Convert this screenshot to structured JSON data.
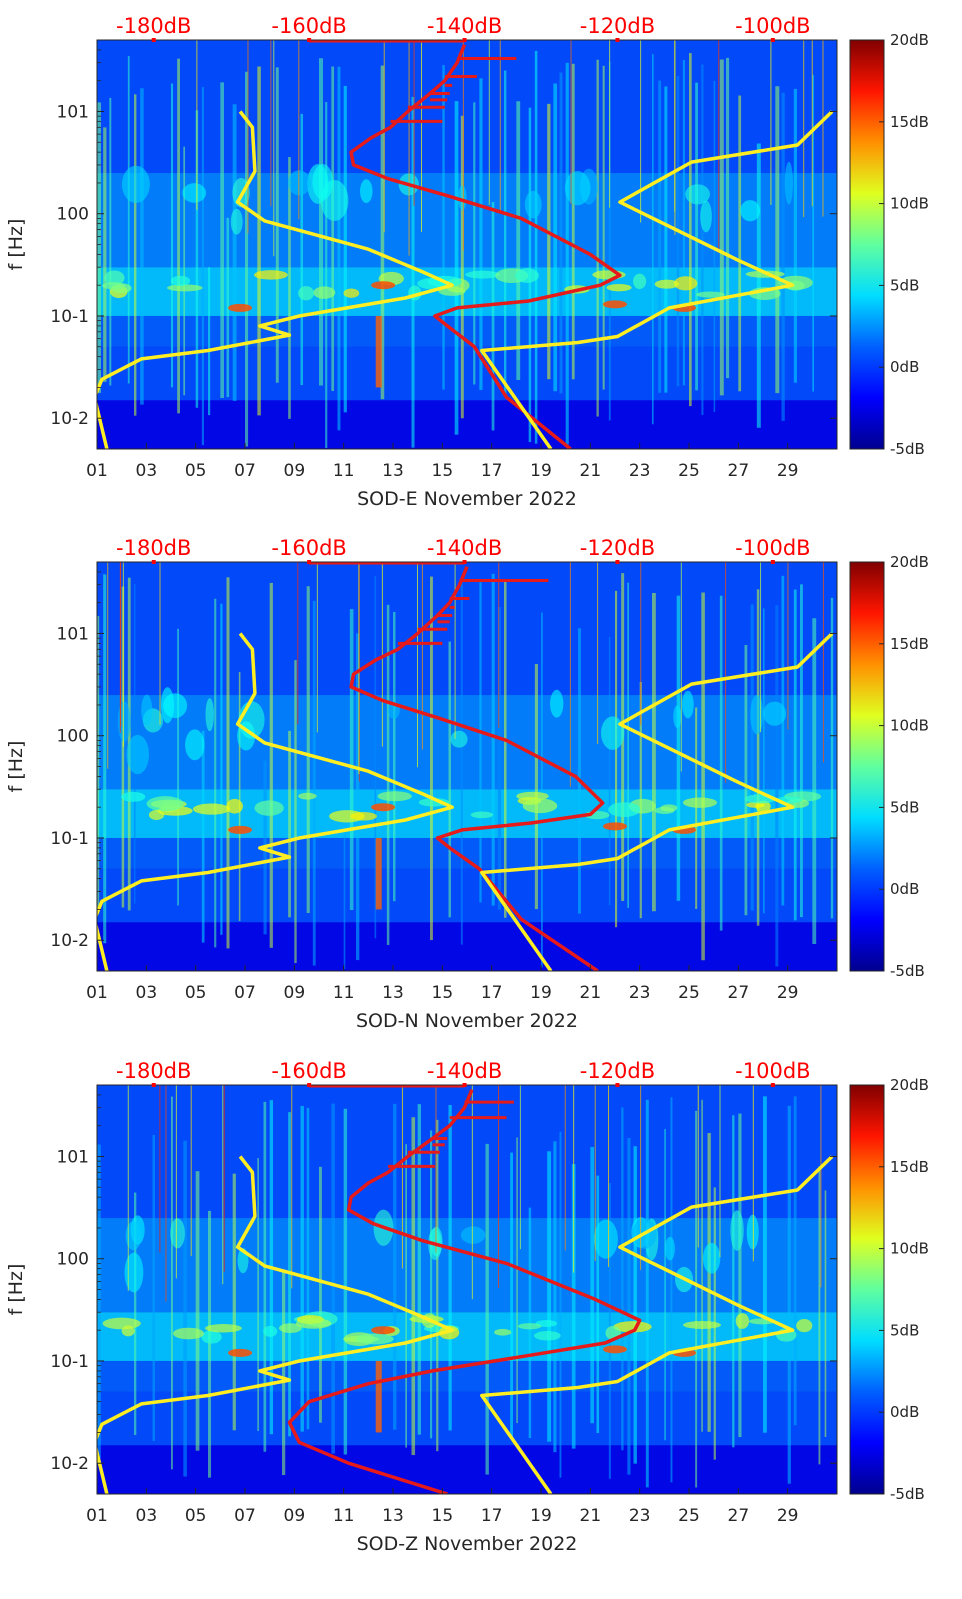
{
  "colors": {
    "background": "#ffffff",
    "text": "#262626",
    "axis": "#262626",
    "red_curve": "#e61a1a",
    "red_top_labels": "#ff0000",
    "yellow_curve": "#ffee22",
    "colormap": [
      "#00008f",
      "#0000ff",
      "#0080ff",
      "#00ffff",
      "#80ff80",
      "#ffff00",
      "#ff8000",
      "#ff0000",
      "#800000"
    ]
  },
  "chart_data": [
    {
      "type": "heatmap",
      "panel": "east",
      "xlabel": "SOD-E November 2022",
      "ylabel": "f [Hz]",
      "x_ticks": [
        "01",
        "03",
        "05",
        "07",
        "09",
        "11",
        "13",
        "15",
        "17",
        "19",
        "21",
        "23",
        "25",
        "27",
        "29"
      ],
      "xlim": [
        1,
        31
      ],
      "y_ticks": [
        "10-2",
        "10-1",
        "100",
        "101"
      ],
      "y_tick_values": [
        0.01,
        0.1,
        1,
        10
      ],
      "ylim": [
        0.005,
        50
      ],
      "yscale": "log",
      "top_ticks": [
        "-180dB",
        "-160dB",
        "-140dB",
        "-120dB",
        "-100dB"
      ],
      "top_tick_days": [
        3.3,
        9.6,
        15.9,
        22.1,
        28.4
      ],
      "colorbar": {
        "ticks": [
          "-5dB",
          "0dB",
          "5dB",
          "10dB",
          "15dB",
          "20dB"
        ],
        "range": [
          -5,
          20
        ]
      },
      "series": [
        {
          "name": "noise reference (red)",
          "color": "red",
          "points": [
            [
              20.2,
              0.005
            ],
            [
              17.6,
              0.016
            ],
            [
              16.3,
              0.05
            ],
            [
              15.2,
              0.08
            ],
            [
              14.7,
              0.1
            ],
            [
              15.6,
              0.12
            ],
            [
              18.5,
              0.14
            ],
            [
              21.4,
              0.2
            ],
            [
              22.2,
              0.25
            ],
            [
              21.0,
              0.4
            ],
            [
              18.2,
              0.9
            ],
            [
              15.2,
              1.5
            ],
            [
              12.8,
              2.2
            ],
            [
              11.4,
              3.0
            ],
            [
              11.3,
              4.0
            ],
            [
              12.1,
              5.5
            ],
            [
              12.9,
              7.0
            ],
            [
              13.6,
              10.0
            ],
            [
              14.5,
              15.0
            ],
            [
              15.1,
              20.0
            ],
            [
              15.6,
              30.0
            ],
            [
              15.9,
              45.0
            ]
          ],
          "spurs": [
            [
              15.0,
              8.0
            ],
            [
              15.1,
              11.0
            ],
            [
              15.2,
              13.0
            ],
            [
              15.3,
              15.0
            ],
            [
              15.4,
              18.0
            ],
            [
              16.4,
              22.0
            ],
            [
              18.0,
              33.0
            ]
          ]
        },
        {
          "name": "seismic noise model (yellow)",
          "color": "yellow",
          "segments": [
            [
              [
                1.4,
                0.005
              ],
              [
                0.9,
                0.016
              ],
              [
                1.2,
                0.024
              ],
              [
                2.8,
                0.038
              ],
              [
                5.5,
                0.046
              ],
              [
                8.8,
                0.065
              ],
              [
                7.6,
                0.08
              ],
              [
                9.2,
                0.1
              ],
              [
                13.5,
                0.15
              ],
              [
                15.4,
                0.2
              ],
              [
                14.2,
                0.27
              ],
              [
                12.0,
                0.45
              ],
              [
                7.8,
                0.85
              ],
              [
                6.7,
                1.3
              ],
              [
                7.4,
                2.6
              ],
              [
                7.3,
                7.0
              ],
              [
                6.8,
                10.0
              ]
            ],
            [
              [
                19.4,
                0.005
              ],
              [
                16.6,
                0.046
              ],
              [
                20.5,
                0.055
              ],
              [
                22.1,
                0.063
              ],
              [
                24.2,
                0.12
              ],
              [
                29.2,
                0.2
              ],
              [
                27.0,
                0.35
              ],
              [
                22.2,
                1.3
              ],
              [
                25.1,
                3.2
              ],
              [
                29.4,
                4.7
              ],
              [
                30.8,
                10.0
              ]
            ]
          ]
        }
      ]
    },
    {
      "type": "heatmap",
      "panel": "north",
      "xlabel": "SOD-N November 2022",
      "ylabel": "f [Hz]",
      "x_ticks": [
        "01",
        "03",
        "05",
        "07",
        "09",
        "11",
        "13",
        "15",
        "17",
        "19",
        "21",
        "23",
        "25",
        "27",
        "29"
      ],
      "xlim": [
        1,
        31
      ],
      "y_ticks": [
        "10-2",
        "10-1",
        "100",
        "101"
      ],
      "y_tick_values": [
        0.01,
        0.1,
        1,
        10
      ],
      "ylim": [
        0.005,
        50
      ],
      "yscale": "log",
      "top_ticks": [
        "-180dB",
        "-160dB",
        "-140dB",
        "-120dB",
        "-100dB"
      ],
      "top_tick_days": [
        3.3,
        9.6,
        15.9,
        22.1,
        28.4
      ],
      "colorbar": {
        "ticks": [
          "-5dB",
          "0dB",
          "5dB",
          "10dB",
          "15dB",
          "20dB"
        ],
        "range": [
          -5,
          20
        ]
      },
      "series": [
        {
          "name": "noise reference (red)",
          "color": "red",
          "points": [
            [
              21.3,
              0.005
            ],
            [
              18.2,
              0.016
            ],
            [
              16.5,
              0.05
            ],
            [
              15.3,
              0.08
            ],
            [
              14.8,
              0.1
            ],
            [
              15.8,
              0.12
            ],
            [
              18.6,
              0.14
            ],
            [
              21.0,
              0.17
            ],
            [
              21.5,
              0.22
            ],
            [
              20.4,
              0.4
            ],
            [
              17.6,
              0.9
            ],
            [
              14.8,
              1.5
            ],
            [
              12.6,
              2.2
            ],
            [
              11.3,
              3.0
            ],
            [
              11.4,
              4.0
            ],
            [
              12.3,
              5.5
            ],
            [
              13.2,
              7.0
            ],
            [
              14.0,
              10.0
            ],
            [
              14.8,
              15.0
            ],
            [
              15.3,
              20.0
            ],
            [
              15.7,
              30.0
            ],
            [
              16.0,
              45.0
            ]
          ],
          "spurs": [
            [
              15.0,
              8.0
            ],
            [
              15.2,
              11.0
            ],
            [
              15.3,
              13.0
            ],
            [
              15.4,
              15.0
            ],
            [
              15.5,
              18.0
            ],
            [
              16.1,
              22.0
            ],
            [
              19.3,
              33.0
            ]
          ]
        },
        {
          "name": "seismic noise model (yellow)",
          "color": "yellow",
          "segments": [
            [
              [
                1.4,
                0.005
              ],
              [
                0.9,
                0.016
              ],
              [
                1.2,
                0.024
              ],
              [
                2.8,
                0.038
              ],
              [
                5.5,
                0.046
              ],
              [
                8.8,
                0.065
              ],
              [
                7.6,
                0.08
              ],
              [
                9.2,
                0.1
              ],
              [
                13.5,
                0.15
              ],
              [
                15.4,
                0.2
              ],
              [
                14.2,
                0.27
              ],
              [
                12.0,
                0.45
              ],
              [
                7.8,
                0.85
              ],
              [
                6.7,
                1.3
              ],
              [
                7.4,
                2.6
              ],
              [
                7.3,
                7.0
              ],
              [
                6.8,
                10.0
              ]
            ],
            [
              [
                19.4,
                0.005
              ],
              [
                16.6,
                0.046
              ],
              [
                20.5,
                0.055
              ],
              [
                22.1,
                0.063
              ],
              [
                24.2,
                0.12
              ],
              [
                29.2,
                0.2
              ],
              [
                27.0,
                0.35
              ],
              [
                22.2,
                1.3
              ],
              [
                25.1,
                3.2
              ],
              [
                29.4,
                4.7
              ],
              [
                30.8,
                10.0
              ]
            ]
          ]
        }
      ]
    },
    {
      "type": "heatmap",
      "panel": "vertical",
      "xlabel": "SOD-Z November 2022",
      "ylabel": "f [Hz]",
      "x_ticks": [
        "01",
        "03",
        "05",
        "07",
        "09",
        "11",
        "13",
        "15",
        "17",
        "19",
        "21",
        "23",
        "25",
        "27",
        "29"
      ],
      "xlim": [
        1,
        31
      ],
      "y_ticks": [
        "10-2",
        "10-1",
        "100",
        "101"
      ],
      "y_tick_values": [
        0.01,
        0.1,
        1,
        10
      ],
      "ylim": [
        0.005,
        50
      ],
      "yscale": "log",
      "top_ticks": [
        "-180dB",
        "-160dB",
        "-140dB",
        "-120dB",
        "-100dB"
      ],
      "top_tick_days": [
        3.3,
        9.6,
        15.9,
        22.1,
        28.4
      ],
      "colorbar": {
        "ticks": [
          "-5dB",
          "0dB",
          "5dB",
          "10dB",
          "15dB",
          "20dB"
        ],
        "range": [
          -5,
          20
        ]
      },
      "series": [
        {
          "name": "noise reference (red)",
          "color": "red",
          "points": [
            [
              15.2,
              0.005
            ],
            [
              11.2,
              0.01
            ],
            [
              9.2,
              0.016
            ],
            [
              8.8,
              0.025
            ],
            [
              9.6,
              0.04
            ],
            [
              12.0,
              0.06
            ],
            [
              14.6,
              0.08
            ],
            [
              18.2,
              0.11
            ],
            [
              21.6,
              0.15
            ],
            [
              22.8,
              0.2
            ],
            [
              23.0,
              0.25
            ],
            [
              21.2,
              0.4
            ],
            [
              17.6,
              0.9
            ],
            [
              14.2,
              1.5
            ],
            [
              12.2,
              2.2
            ],
            [
              11.2,
              3.0
            ],
            [
              11.3,
              4.0
            ],
            [
              12.0,
              5.5
            ],
            [
              12.8,
              7.0
            ],
            [
              13.6,
              10.0
            ],
            [
              14.6,
              15.0
            ],
            [
              15.3,
              20.0
            ],
            [
              15.9,
              30.0
            ],
            [
              16.2,
              45.0
            ]
          ],
          "spurs": [
            [
              14.7,
              8.0
            ],
            [
              14.9,
              11.0
            ],
            [
              15.1,
              13.0
            ],
            [
              15.2,
              15.0
            ],
            [
              15.3,
              18.0
            ],
            [
              17.6,
              24.0
            ],
            [
              17.9,
              34.0
            ]
          ]
        },
        {
          "name": "seismic noise model (yellow)",
          "color": "yellow",
          "segments": [
            [
              [
                1.4,
                0.005
              ],
              [
                0.9,
                0.016
              ],
              [
                1.2,
                0.024
              ],
              [
                2.8,
                0.038
              ],
              [
                5.5,
                0.046
              ],
              [
                8.8,
                0.065
              ],
              [
                7.6,
                0.08
              ],
              [
                9.2,
                0.1
              ],
              [
                13.5,
                0.15
              ],
              [
                15.4,
                0.2
              ],
              [
                14.2,
                0.27
              ],
              [
                12.0,
                0.45
              ],
              [
                7.8,
                0.85
              ],
              [
                6.7,
                1.3
              ],
              [
                7.4,
                2.6
              ],
              [
                7.3,
                7.0
              ],
              [
                6.8,
                10.0
              ]
            ],
            [
              [
                19.4,
                0.005
              ],
              [
                16.6,
                0.046
              ],
              [
                20.5,
                0.055
              ],
              [
                22.1,
                0.063
              ],
              [
                24.2,
                0.12
              ],
              [
                29.2,
                0.2
              ],
              [
                27.0,
                0.35
              ],
              [
                22.2,
                1.3
              ],
              [
                25.1,
                3.2
              ],
              [
                29.4,
                4.7
              ],
              [
                30.8,
                10.0
              ]
            ]
          ]
        }
      ]
    }
  ]
}
